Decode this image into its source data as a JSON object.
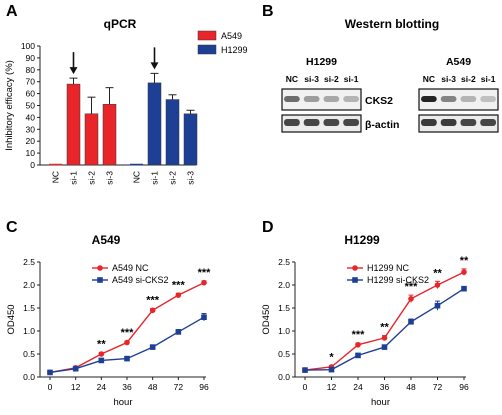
{
  "panels": {
    "A": {
      "label": "A",
      "title": "qPCR"
    },
    "B": {
      "label": "B",
      "title": "Western blotting"
    },
    "C": {
      "label": "C",
      "title": "A549"
    },
    "D": {
      "label": "D",
      "title": "H1299"
    }
  },
  "chart_data": [
    {
      "type": "bar",
      "title": "qPCR",
      "ylabel": "Inhibitory efficacy (%)",
      "ylim": [
        0,
        100
      ],
      "yticks": [
        0,
        10,
        20,
        30,
        40,
        50,
        60,
        70,
        80,
        90,
        100
      ],
      "groups": [
        {
          "name": "A549",
          "color": "#e8262a",
          "categories": [
            "NC",
            "si-1",
            "si-2",
            "si-3"
          ],
          "values": [
            0,
            68,
            43,
            51
          ],
          "errors": [
            0,
            5,
            14,
            14
          ],
          "arrow_on": "si-1"
        },
        {
          "name": "H1299",
          "color": "#1e3f96",
          "categories": [
            "NC",
            "si-1",
            "si-2",
            "si-3"
          ],
          "values": [
            0,
            69,
            55,
            43
          ],
          "errors": [
            0,
            8,
            4,
            3
          ],
          "arrow_on": "si-1"
        }
      ],
      "legend_position": "top-right"
    },
    {
      "type": "line",
      "title": "A549",
      "xlabel": "hour",
      "ylabel": "OD450",
      "x": [
        0,
        12,
        24,
        36,
        48,
        72,
        96
      ],
      "ylim": [
        0.0,
        2.5
      ],
      "yticks": [
        0.0,
        0.5,
        1.0,
        1.5,
        2.0,
        2.5
      ],
      "series": [
        {
          "name": "A549 NC",
          "color": "#e8262a",
          "marker": "circle",
          "values": [
            0.1,
            0.2,
            0.5,
            0.75,
            1.45,
            1.78,
            2.05
          ],
          "errors": [
            0.02,
            0.03,
            0.03,
            0.03,
            0.04,
            0.04,
            0.04
          ]
        },
        {
          "name": "A549 si-CKS2",
          "color": "#1e3f96",
          "marker": "square",
          "values": [
            0.1,
            0.18,
            0.36,
            0.4,
            0.65,
            0.98,
            1.3
          ],
          "errors": [
            0.02,
            0.02,
            0.03,
            0.03,
            0.04,
            0.05,
            0.08
          ]
        }
      ],
      "annotations": [
        "",
        "",
        "**",
        "***",
        "***",
        "***",
        "***"
      ],
      "legend_position": "top-left"
    },
    {
      "type": "line",
      "title": "H1299",
      "xlabel": "hour",
      "ylabel": "OD450",
      "x": [
        0,
        12,
        24,
        36,
        48,
        72,
        96
      ],
      "ylim": [
        0.0,
        2.5
      ],
      "yticks": [
        0.0,
        0.5,
        1.0,
        1.5,
        2.0,
        2.5
      ],
      "series": [
        {
          "name": "H1299 NC",
          "color": "#e8262a",
          "marker": "circle",
          "values": [
            0.15,
            0.22,
            0.7,
            0.85,
            1.7,
            2.0,
            2.28
          ],
          "errors": [
            0.02,
            0.03,
            0.04,
            0.05,
            0.08,
            0.08,
            0.07
          ]
        },
        {
          "name": "H1299 si-CKS2",
          "color": "#1e3f96",
          "marker": "square",
          "values": [
            0.15,
            0.16,
            0.47,
            0.65,
            1.2,
            1.55,
            1.92
          ],
          "errors": [
            0.02,
            0.02,
            0.04,
            0.04,
            0.06,
            0.1,
            0.04
          ]
        }
      ],
      "annotations": [
        "",
        "*",
        "***",
        "**",
        "***",
        "**",
        "**"
      ],
      "legend_position": "top-left"
    }
  ],
  "blot": {
    "left_cell": "H1299",
    "right_cell": "A549",
    "lanes": [
      "NC",
      "si-3",
      "si-2",
      "si-1"
    ],
    "protein": "CKS2",
    "loading": "β-actin",
    "cks2_left": [
      0.55,
      0.35,
      0.3,
      0.25
    ],
    "cks2_right": [
      0.85,
      0.45,
      0.25,
      0.2
    ],
    "actin_left": [
      0.7,
      0.7,
      0.7,
      0.7
    ],
    "actin_right": [
      0.75,
      0.75,
      0.7,
      0.7
    ]
  }
}
